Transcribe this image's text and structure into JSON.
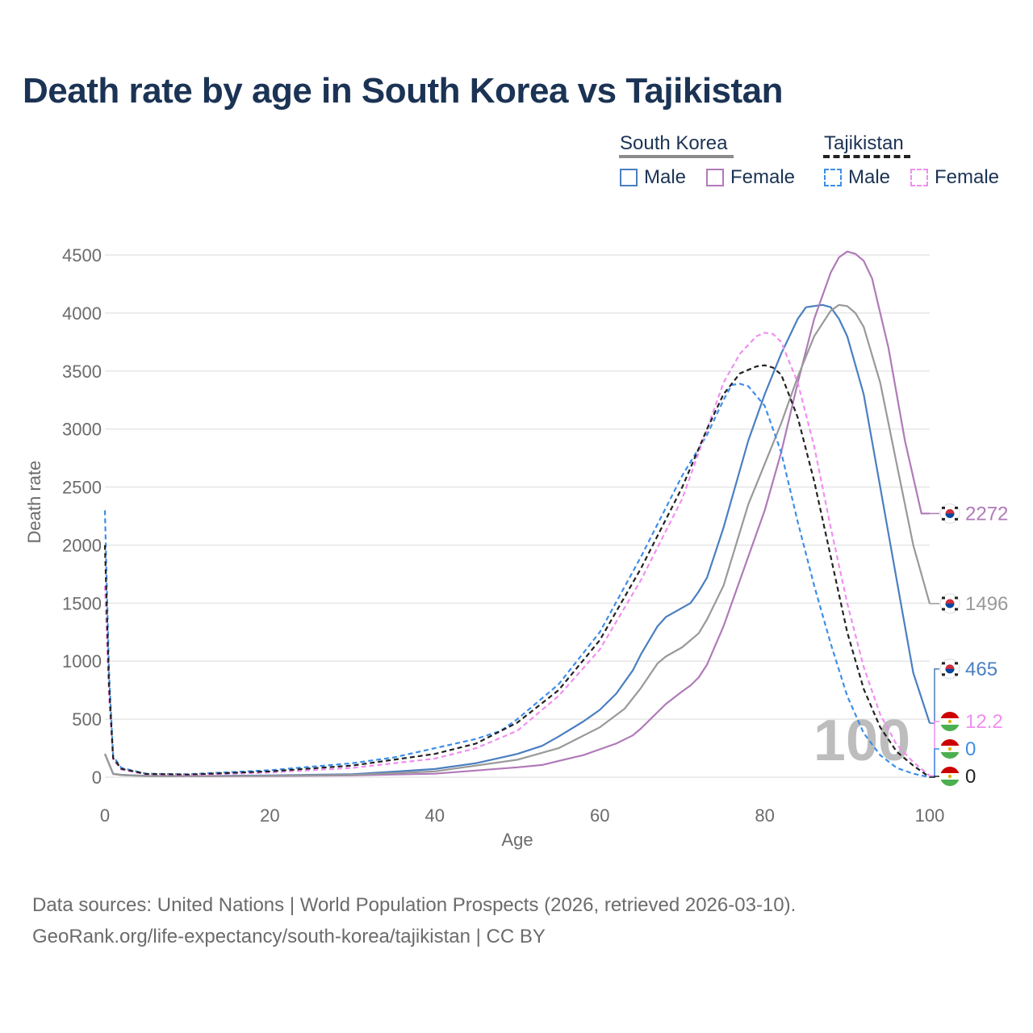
{
  "title": "Death rate by age in South Korea vs Tajikistan",
  "legend": {
    "groups": [
      {
        "name": "South Korea",
        "underline_color": "#8c8c8c",
        "style": "solid",
        "items": [
          {
            "label": "Male",
            "color": "#4a7fc1"
          },
          {
            "label": "Female",
            "color": "#b07ab8"
          }
        ]
      },
      {
        "name": "Tajikistan",
        "underline_color": "#222222",
        "style": "dashed",
        "items": [
          {
            "label": "Male",
            "color": "#3d8ee8"
          },
          {
            "label": "Female",
            "color": "#f08ef0"
          }
        ]
      }
    ]
  },
  "watermark": "100",
  "footer": {
    "line1": "Data sources: United Nations | World Population Prospects (2026, retrieved 2026-03-10).",
    "line2": "GeoRank.org/life-expectancy/south-korea/tajikistan | CC BY"
  },
  "chart_data": {
    "type": "line",
    "title": "Death rate by age in South Korea vs Tajikistan",
    "xlabel": "Age",
    "ylabel": "Death rate",
    "xlim": [
      0,
      100
    ],
    "ylim": [
      0,
      4500
    ],
    "xticks": [
      0,
      20,
      40,
      60,
      80,
      100
    ],
    "yticks": [
      0,
      500,
      1000,
      1500,
      2000,
      2500,
      3000,
      3500,
      4000,
      4500
    ],
    "grid": true,
    "series": [
      {
        "name": "South Korea Male",
        "country": "South Korea",
        "sex": "Male",
        "color": "#4a7fc1",
        "dashed": false,
        "x": [
          0,
          1,
          2,
          5,
          10,
          20,
          30,
          40,
          45,
          50,
          53,
          55,
          58,
          60,
          62,
          64,
          65,
          67,
          68,
          70,
          71,
          72,
          73,
          75,
          78,
          80,
          82,
          84,
          85,
          87,
          88,
          89,
          90,
          92,
          94,
          96,
          98,
          100
        ],
        "y": [
          200,
          30,
          20,
          12,
          10,
          15,
          25,
          70,
          120,
          200,
          270,
          350,
          480,
          580,
          720,
          920,
          1060,
          1300,
          1380,
          1460,
          1500,
          1600,
          1720,
          2150,
          2900,
          3300,
          3650,
          3950,
          4050,
          4070,
          4050,
          3950,
          3800,
          3300,
          2500,
          1700,
          900,
          465
        ],
        "end_label": "465",
        "end_flag": "south-korea"
      },
      {
        "name": "South Korea Female",
        "country": "South Korea",
        "sex": "Female",
        "color": "#b07ab8",
        "dashed": false,
        "x": [
          0,
          1,
          2,
          5,
          10,
          20,
          30,
          40,
          50,
          53,
          55,
          58,
          60,
          62,
          64,
          65,
          67,
          68,
          70,
          71,
          72,
          73,
          75,
          78,
          80,
          82,
          84,
          86,
          88,
          89,
          90,
          91,
          92,
          93,
          95,
          97,
          99,
          100
        ],
        "y": [
          200,
          28,
          18,
          10,
          8,
          10,
          15,
          30,
          85,
          105,
          140,
          190,
          240,
          290,
          360,
          420,
          560,
          630,
          740,
          790,
          860,
          970,
          1300,
          1900,
          2300,
          2800,
          3400,
          3950,
          4350,
          4480,
          4530,
          4510,
          4450,
          4300,
          3700,
          2900,
          2272,
          2272
        ],
        "end_label": "2272",
        "end_flag": "south-korea"
      },
      {
        "name": "South Korea All",
        "country": "South Korea",
        "sex": "All",
        "color": "#999999",
        "dashed": false,
        "x": [
          0,
          1,
          2,
          5,
          10,
          20,
          30,
          40,
          50,
          55,
          60,
          63,
          65,
          67,
          68,
          70,
          72,
          73,
          75,
          78,
          80,
          82,
          84,
          86,
          88,
          89,
          90,
          91,
          92,
          94,
          96,
          98,
          100
        ],
        "y": [
          200,
          28,
          18,
          10,
          8,
          12,
          20,
          50,
          150,
          250,
          430,
          590,
          770,
          980,
          1040,
          1120,
          1240,
          1360,
          1650,
          2350,
          2700,
          3050,
          3450,
          3800,
          4020,
          4070,
          4060,
          4000,
          3880,
          3400,
          2700,
          2000,
          1496
        ],
        "end_label": "1496",
        "end_flag": "south-korea"
      },
      {
        "name": "Tajikistan Male",
        "country": "Tajikistan",
        "sex": "Male",
        "color": "#3d8ee8",
        "dashed": true,
        "x": [
          0,
          0.5,
          1,
          2,
          5,
          10,
          20,
          30,
          35,
          40,
          45,
          48,
          50,
          55,
          60,
          65,
          70,
          73,
          75,
          76,
          77,
          78,
          80,
          82,
          84,
          86,
          88,
          90,
          92,
          94,
          96,
          98,
          100
        ],
        "y": [
          2300,
          900,
          180,
          80,
          30,
          25,
          60,
          120,
          170,
          250,
          330,
          400,
          500,
          800,
          1250,
          1900,
          2600,
          2950,
          3250,
          3380,
          3390,
          3370,
          3200,
          2800,
          2200,
          1650,
          1150,
          700,
          380,
          190,
          80,
          30,
          0
        ],
        "end_label": "0",
        "end_flag": "tajikistan"
      },
      {
        "name": "Tajikistan Female",
        "country": "Tajikistan",
        "sex": "Female",
        "color": "#f08ef0",
        "dashed": true,
        "x": [
          0,
          0.5,
          1,
          2,
          5,
          10,
          20,
          30,
          40,
          45,
          50,
          55,
          60,
          65,
          70,
          73,
          75,
          77,
          79,
          80,
          81,
          82,
          84,
          86,
          88,
          90,
          92,
          94,
          96,
          98,
          100
        ],
        "y": [
          1650,
          700,
          150,
          65,
          25,
          18,
          40,
          80,
          160,
          250,
          400,
          700,
          1100,
          1700,
          2400,
          3000,
          3400,
          3650,
          3800,
          3830,
          3820,
          3750,
          3400,
          2850,
          2150,
          1500,
          950,
          540,
          280,
          130,
          12.2
        ],
        "end_label": "12.2",
        "end_flag": "tajikistan"
      },
      {
        "name": "Tajikistan All",
        "country": "Tajikistan",
        "sex": "All",
        "color": "#222222",
        "dashed": true,
        "x": [
          0,
          0.5,
          1,
          2,
          5,
          10,
          20,
          30,
          40,
          45,
          50,
          55,
          60,
          65,
          70,
          73,
          75,
          77,
          79,
          80,
          81,
          82,
          84,
          86,
          88,
          90,
          92,
          94,
          96,
          98,
          100
        ],
        "y": [
          2000,
          800,
          165,
          72,
          28,
          22,
          50,
          100,
          200,
          290,
          470,
          750,
          1180,
          1800,
          2500,
          3000,
          3300,
          3480,
          3540,
          3550,
          3530,
          3470,
          3100,
          2550,
          1900,
          1250,
          760,
          430,
          220,
          100,
          0
        ],
        "end_label": "0",
        "end_flag": "tajikistan"
      }
    ]
  }
}
